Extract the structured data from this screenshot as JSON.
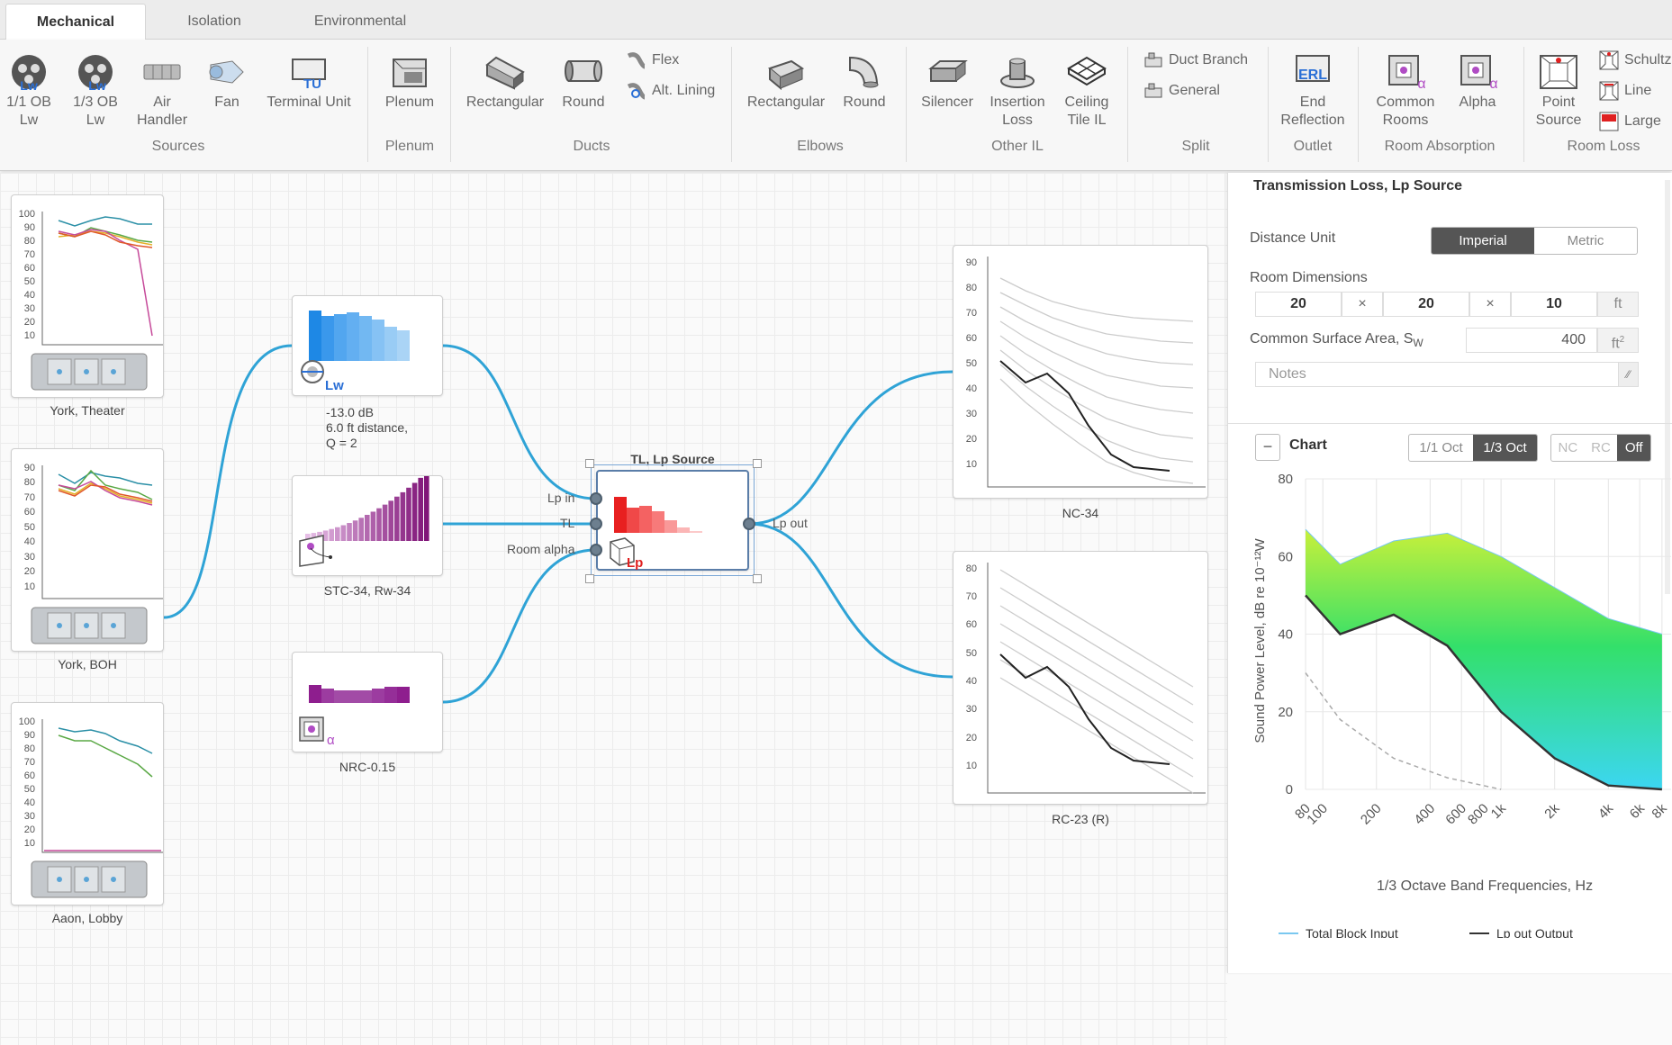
{
  "tabs": [
    "Mechanical",
    "Isolation",
    "Environmental"
  ],
  "ribbon": {
    "sources": {
      "b1": [
        "1/1 OB",
        "Lw"
      ],
      "b2": [
        "1/3 OB",
        "Lw"
      ],
      "b3": [
        "Air",
        "Handler"
      ],
      "b4": "Fan",
      "b5": "Terminal Unit",
      "label": "Sources"
    },
    "plenum": {
      "b1": "Plenum",
      "label": "Plenum"
    },
    "ducts": {
      "b1": "Rectangular",
      "b2": "Round",
      "flex": "Flex",
      "alt": "Alt. Lining",
      "label": "Ducts"
    },
    "elbows": {
      "b1": "Rectangular",
      "b2": "Round",
      "label": "Elbows"
    },
    "other": {
      "b1": "Silencer",
      "b2": [
        "Insertion",
        "Loss"
      ],
      "b3": [
        "Ceiling",
        "Tile IL"
      ],
      "label": "Other IL"
    },
    "split": {
      "b1": "Duct Branch",
      "b2": "General",
      "label": "Split"
    },
    "outlet": {
      "b1": [
        "End",
        "Reflection"
      ],
      "label": "Outlet"
    },
    "absorption": {
      "b1": [
        "Common",
        "Rooms"
      ],
      "b2": "Alpha",
      "label": "Room Absorption"
    },
    "loss": {
      "b1": [
        "Point",
        "Source"
      ],
      "s1": "Schultz",
      "s2": "Line",
      "s3": "Large",
      "label": "Room Loss"
    },
    "icon_text": {
      "lw": "Lw",
      "tu": "TU",
      "erl": "ERL",
      "alpha": "α",
      "lp": "Lp"
    }
  },
  "nodes": {
    "york_theater": "York, Theater",
    "york_boh": "York, BOH",
    "aaon_lobby": "Aaon, Lobby",
    "lw_lines": [
      "-13.0 dB",
      "6.0 ft distance,",
      "Q = 2"
    ],
    "stc": "STC-34, Rw-34",
    "nrc": "NRC-0.15",
    "tl_title": "TL, Lp Source",
    "ports": {
      "lp_in": "Lp in",
      "tl": "TL",
      "room_alpha": "Room alpha",
      "lp_out": "Lp out"
    },
    "nc": "NC-34",
    "rc": "RC-23 (R)",
    "ticks100": [
      "100",
      "90",
      "80",
      "70",
      "60",
      "50",
      "40",
      "30",
      "20",
      "10"
    ],
    "ticks90": [
      "90",
      "80",
      "70",
      "60",
      "50",
      "40",
      "30",
      "20",
      "10"
    ],
    "ticks80": [
      "80",
      "70",
      "60",
      "50",
      "40",
      "30",
      "20",
      "10"
    ]
  },
  "panel": {
    "title": "Transmission Loss, Lp Source",
    "distance_unit": "Distance Unit",
    "imperial": "Imperial",
    "metric": "Metric",
    "room_dims": "Room Dimensions",
    "dim1": "20",
    "dim2": "20",
    "dim3": "10",
    "x": "×",
    "ft": "ft",
    "csa_label": "Common Surface Area, S",
    "csa_sub": "W",
    "csa_value": "400",
    "ft2": "ft",
    "ft2_sup": "2",
    "notes": "Notes",
    "chart_label": "Chart",
    "collapse": "−",
    "oct1": "1/1 Oct",
    "oct3": "1/3 Oct",
    "nc": "NC",
    "rc": "RC",
    "off": "Off",
    "ylabel": "Sound Power Level, dB re 10⁻¹²W",
    "xlabel": "1/3 Octave Band Frequencies, Hz",
    "legend1": "Total Block Input",
    "legend2": "Lp out Output"
  },
  "chart_data": {
    "type": "area",
    "xlabel": "1/3 Octave Band Frequencies, Hz",
    "ylabel": "Sound Power Level, dB re 10⁻¹²W",
    "ylim": [
      0,
      80
    ],
    "y_ticks": [
      0,
      20,
      40,
      60,
      80
    ],
    "x_ticks": [
      "80",
      "100",
      "200",
      "400",
      "600",
      "800",
      "1k",
      "2k",
      "4k",
      "6k",
      "8k"
    ],
    "x": [
      80,
      125,
      250,
      500,
      1000,
      2000,
      4000,
      8000
    ],
    "series": [
      {
        "name": "Total Block Input",
        "values": [
          67,
          58,
          64,
          66,
          60,
          52,
          44,
          40
        ]
      },
      {
        "name": "Lp out Output",
        "values": [
          50,
          40,
          45,
          37,
          20,
          8,
          1,
          0
        ]
      },
      {
        "name": "",
        "values": [
          30,
          18,
          8,
          3,
          0,
          0,
          0,
          0
        ]
      }
    ],
    "legend": "bottom"
  }
}
